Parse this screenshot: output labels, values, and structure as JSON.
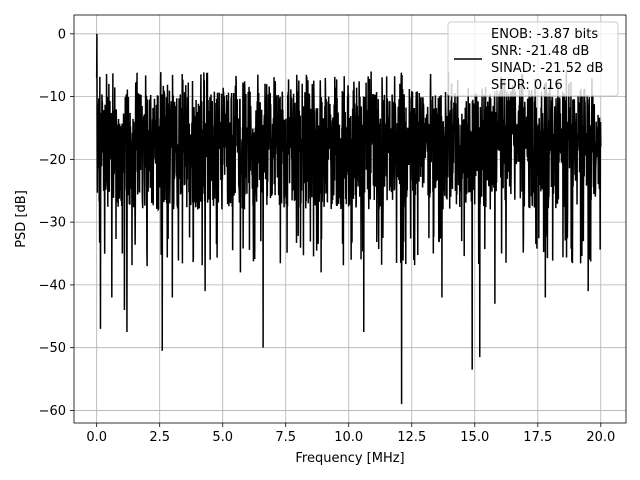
{
  "chart_data": {
    "type": "line",
    "title": "",
    "xlabel": "Frequency [MHz]",
    "ylabel": "PSD [dB]",
    "xlim": [
      -0.9,
      21.0
    ],
    "ylim": [
      -62.0,
      3.0
    ],
    "xticks": [
      0.0,
      2.5,
      5.0,
      7.5,
      10.0,
      12.5,
      15.0,
      17.5,
      20.0
    ],
    "xtick_labels": [
      "0.0",
      "2.5",
      "5.0",
      "7.5",
      "10.0",
      "12.5",
      "15.0",
      "17.5",
      "20.0"
    ],
    "yticks": [
      0,
      -10,
      -20,
      -30,
      -40,
      -50,
      -60
    ],
    "ytick_labels": [
      "0",
      "−10",
      "−20",
      "−30",
      "−40",
      "−50",
      "−60"
    ],
    "grid": true,
    "legend_position": "upper-right",
    "legend_entries": [
      "ENOB: -3.87 bits",
      "SNR: -21.48 dB",
      "SINAD: -21.52 dB",
      "SFDR: 0.16"
    ],
    "line_color": "#000000",
    "series": [
      {
        "description_note": "dense noisy spectrum, 0 to 20 MHz, mostly between -10 and -30 dB",
        "x_start": 0.0,
        "x_end": 20.0,
        "baseline_db": -20,
        "upper_envelope_db": -9,
        "lower_envelope_db": -32,
        "peak": {
          "x": 0.0,
          "y": 0.0
        },
        "notches": [
          {
            "x": 0.15,
            "y": -47
          },
          {
            "x": 0.6,
            "y": -42
          },
          {
            "x": 1.1,
            "y": -44
          },
          {
            "x": 1.2,
            "y": -47.5
          },
          {
            "x": 2.0,
            "y": -37
          },
          {
            "x": 2.6,
            "y": -50.5
          },
          {
            "x": 3.0,
            "y": -42
          },
          {
            "x": 4.3,
            "y": -41
          },
          {
            "x": 5.7,
            "y": -38
          },
          {
            "x": 6.6,
            "y": -50
          },
          {
            "x": 8.9,
            "y": -38
          },
          {
            "x": 10.1,
            "y": -36
          },
          {
            "x": 10.6,
            "y": -47.5
          },
          {
            "x": 11.9,
            "y": -36.5
          },
          {
            "x": 12.1,
            "y": -59
          },
          {
            "x": 13.7,
            "y": -42
          },
          {
            "x": 14.9,
            "y": -53.5
          },
          {
            "x": 15.2,
            "y": -51.5
          },
          {
            "x": 15.8,
            "y": -43
          },
          {
            "x": 17.8,
            "y": -42
          },
          {
            "x": 19.5,
            "y": -41
          }
        ]
      }
    ]
  }
}
